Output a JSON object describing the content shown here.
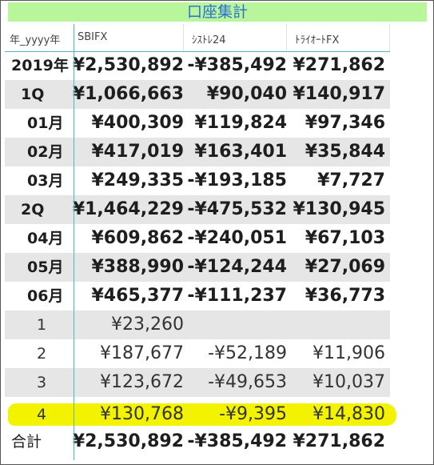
{
  "title": "口座集計",
  "headers": [
    "年_yyyy年",
    "SBIFX",
    "ｼｽﾄﾚ24",
    "ﾄﾗｲｵｰﾄFX"
  ],
  "rows": [
    {
      "label": "2019年",
      "sbifx": "¥2,530,892",
      "systre": "-¥385,492",
      "triauto": "¥271,862"
    },
    {
      "label": "1Q",
      "sbifx": "¥1,066,663",
      "systre": "¥90,040",
      "triauto": "¥140,917"
    },
    {
      "label": "01月",
      "sbifx": "¥400,309",
      "systre": "¥119,824",
      "triauto": "¥97,346"
    },
    {
      "label": "02月",
      "sbifx": "¥417,019",
      "systre": "¥163,401",
      "triauto": "¥35,844"
    },
    {
      "label": "03月",
      "sbifx": "¥249,335",
      "systre": "-¥193,185",
      "triauto": "¥7,727"
    },
    {
      "label": "2Q",
      "sbifx": "¥1,464,229",
      "systre": "-¥475,532",
      "triauto": "¥130,945"
    },
    {
      "label": "04月",
      "sbifx": "¥609,862",
      "systre": "-¥240,051",
      "triauto": "¥67,103"
    },
    {
      "label": "05月",
      "sbifx": "¥388,990",
      "systre": "-¥124,244",
      "triauto": "¥27,069"
    },
    {
      "label": "06月",
      "sbifx": "¥465,377",
      "systre": "-¥111,237",
      "triauto": "¥36,773"
    },
    {
      "label": "1",
      "sbifx": "¥23,260",
      "systre": "",
      "triauto": ""
    },
    {
      "label": "2",
      "sbifx": "¥187,677",
      "systre": "-¥52,189",
      "triauto": "¥11,906"
    },
    {
      "label": "3",
      "sbifx": "¥123,672",
      "systre": "-¥49,653",
      "triauto": "¥10,037"
    },
    {
      "label": "4",
      "sbifx": "¥130,768",
      "systre": "-¥9,395",
      "triauto": "¥14,830"
    }
  ],
  "total": {
    "label": "合計",
    "sbifx": "¥2,530,892",
    "systre": "-¥385,492",
    "triauto": "¥271,862"
  },
  "colors": {
    "title_bg": "#b9f59a",
    "title_text": "#2a6fd6",
    "highlight": "#f3f300",
    "row_shade": "#e6e6e6",
    "divider": "#4fb6c6"
  }
}
